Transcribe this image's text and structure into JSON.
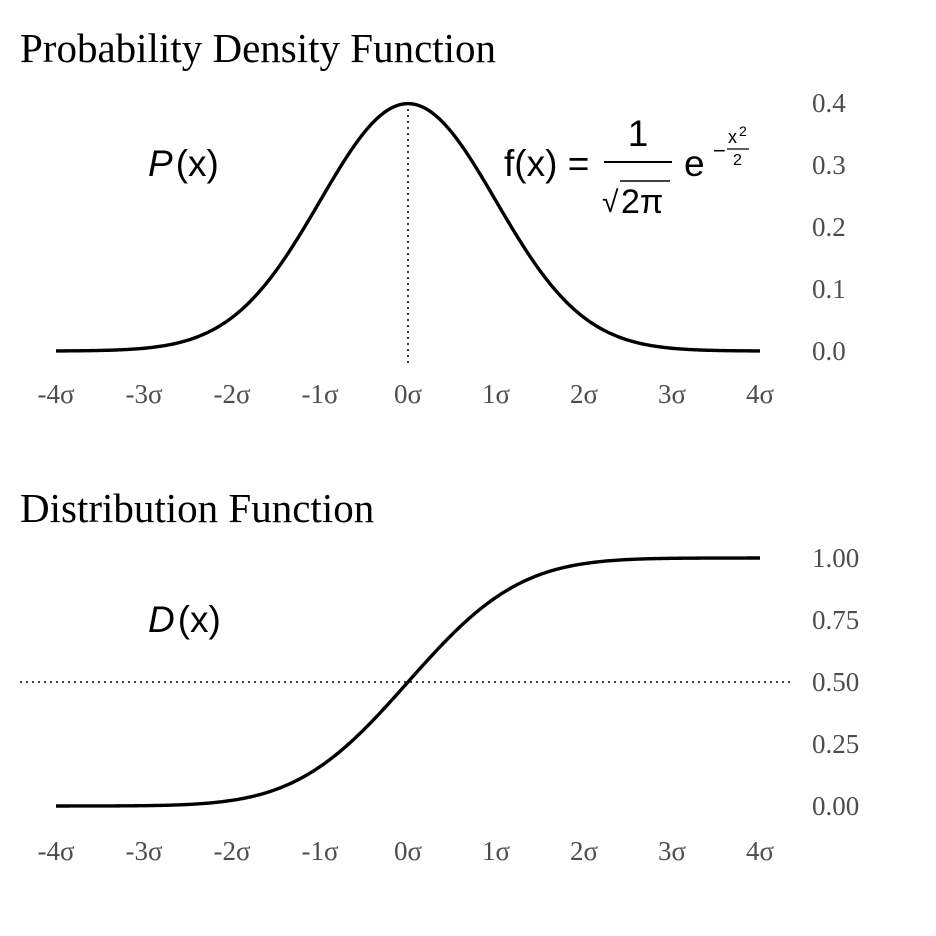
{
  "chart_data": [
    {
      "type": "line",
      "title": "Probability Density Function",
      "curve_label": {
        "italic": "P",
        "rest": "(x)"
      },
      "formula": {
        "lhs": "f(x) =",
        "numerator": "1",
        "radical": "√",
        "radicand": "2π",
        "base": "e",
        "exp_sign": "−",
        "exp_num": "x",
        "exp_pow": "2",
        "exp_den": "2"
      },
      "function": "normal_pdf",
      "x_range": [
        -4,
        4
      ],
      "ylim": [
        0,
        0.4
      ],
      "x_ticks": [
        -4,
        -3,
        -2,
        -1,
        0,
        1,
        2,
        3,
        4
      ],
      "x_tick_labels": [
        "-4σ",
        "-3σ",
        "-2σ",
        "-1σ",
        "0σ",
        "1σ",
        "2σ",
        "3σ",
        "4σ"
      ],
      "y_ticks": [
        0,
        0.1,
        0.2,
        0.3,
        0.4
      ],
      "y_tick_labels": [
        "0.0",
        "0.1",
        "0.2",
        "0.3",
        "0.4"
      ],
      "y_axis_side": "right",
      "reference_line": {
        "orientation": "vertical",
        "x": 0,
        "style": "dotted"
      },
      "grid": false
    },
    {
      "type": "line",
      "title": "Distribution Function",
      "curve_label": {
        "italic": "D",
        "rest": "(x)"
      },
      "function": "normal_cdf",
      "x_range": [
        -4,
        4
      ],
      "ylim": [
        0,
        1
      ],
      "x_ticks": [
        -4,
        -3,
        -2,
        -1,
        0,
        1,
        2,
        3,
        4
      ],
      "x_tick_labels": [
        "-4σ",
        "-3σ",
        "-2σ",
        "-1σ",
        "0σ",
        "1σ",
        "2σ",
        "3σ",
        "4σ"
      ],
      "y_ticks": [
        0,
        0.25,
        0.5,
        0.75,
        1
      ],
      "y_tick_labels": [
        "0.00",
        "0.25",
        "0.50",
        "0.75",
        "1.00"
      ],
      "y_axis_side": "right",
      "reference_line": {
        "orientation": "horizontal",
        "y": 0.5,
        "style": "dotted"
      },
      "grid": false
    }
  ]
}
